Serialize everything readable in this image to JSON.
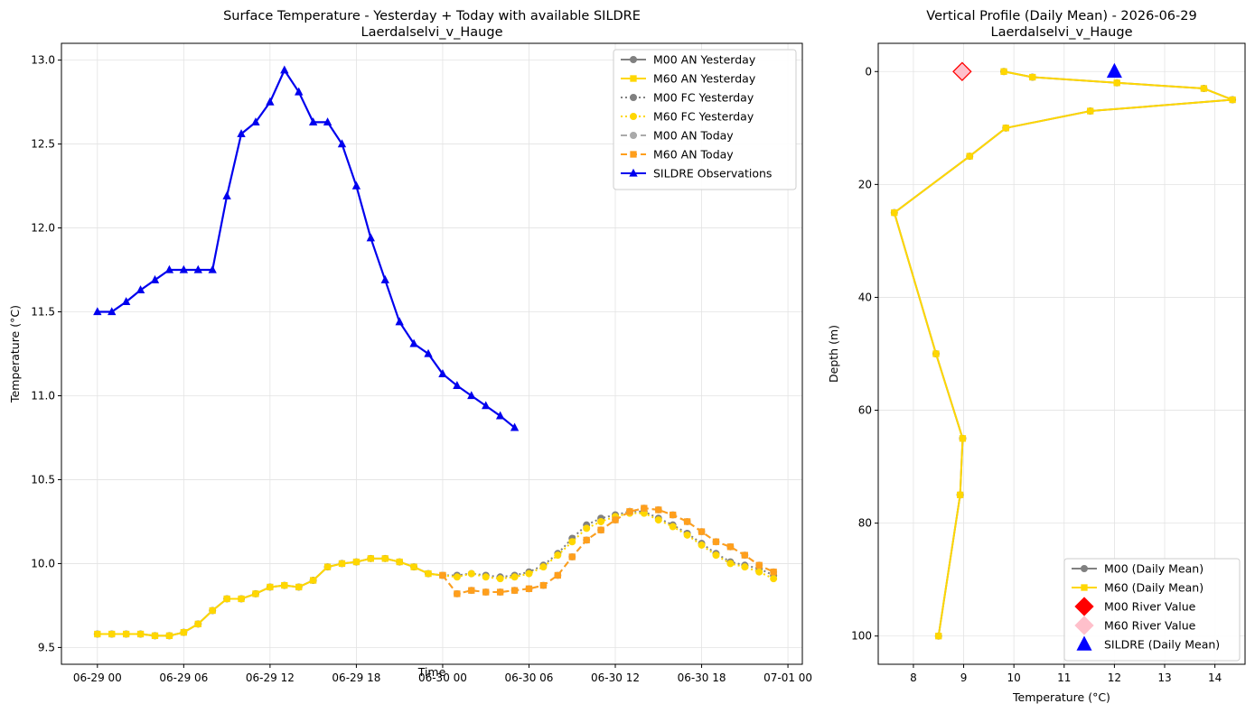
{
  "chart_data": [
    {
      "type": "line",
      "title": "Surface Temperature - Yesterday + Today with available SILDRE",
      "subtitle": "Laerdalselvi_v_Hauge",
      "xlabel": "Time",
      "ylabel": "Temperature (°C)",
      "x_unit": "hours since 06-29 00",
      "xlim": [
        -2.5,
        49
      ],
      "ylim": [
        9.4,
        13.1
      ],
      "xticks": [
        {
          "value": 0,
          "label": "06-29 00"
        },
        {
          "value": 6,
          "label": "06-29 06"
        },
        {
          "value": 12,
          "label": "06-29 12"
        },
        {
          "value": 18,
          "label": "06-29 18"
        },
        {
          "value": 24,
          "label": "06-30 00"
        },
        {
          "value": 30,
          "label": "06-30 06"
        },
        {
          "value": 36,
          "label": "06-30 12"
        },
        {
          "value": 42,
          "label": "06-30 18"
        },
        {
          "value": 48,
          "label": "07-01 00"
        }
      ],
      "yticks": [
        9.5,
        10.0,
        10.5,
        11.0,
        11.5,
        12.0,
        12.5,
        13.0
      ],
      "grid": true,
      "legend_position": "top-right",
      "series": [
        {
          "name": "M00 AN Yesterday",
          "color": "#808080",
          "marker": "circle",
          "dash": "solid",
          "width": 2,
          "x": [
            0,
            1,
            2,
            3,
            4,
            5,
            6,
            7,
            8,
            9,
            10,
            11,
            12,
            13,
            14,
            15,
            16,
            17,
            18,
            19,
            20,
            21,
            22,
            23,
            24
          ],
          "y": [
            9.58,
            9.58,
            9.58,
            9.58,
            9.57,
            9.57,
            9.59,
            9.64,
            9.72,
            9.79,
            9.79,
            9.82,
            9.86,
            9.87,
            9.86,
            9.9,
            9.98,
            10.0,
            10.01,
            10.03,
            10.03,
            10.01,
            9.98,
            9.94,
            9.93
          ]
        },
        {
          "name": "M60 AN Yesterday",
          "color": "#FFD700",
          "marker": "square",
          "dash": "solid",
          "width": 2,
          "x": [
            0,
            1,
            2,
            3,
            4,
            5,
            6,
            7,
            8,
            9,
            10,
            11,
            12,
            13,
            14,
            15,
            16,
            17,
            18,
            19,
            20,
            21,
            22,
            23,
            24
          ],
          "y": [
            9.58,
            9.58,
            9.58,
            9.58,
            9.57,
            9.57,
            9.59,
            9.64,
            9.72,
            9.79,
            9.79,
            9.82,
            9.86,
            9.87,
            9.86,
            9.9,
            9.98,
            10.0,
            10.01,
            10.03,
            10.03,
            10.01,
            9.98,
            9.94,
            9.93
          ]
        },
        {
          "name": "M00 FC Yesterday",
          "color": "#808080",
          "marker": "circle",
          "dash": "dotted",
          "width": 2,
          "x": [
            24,
            25,
            26,
            27,
            28,
            29,
            30,
            31,
            32,
            33,
            34,
            35,
            36,
            37,
            38,
            39,
            40,
            41,
            42,
            43,
            44,
            45,
            46,
            47
          ],
          "y": [
            9.93,
            9.93,
            9.94,
            9.93,
            9.92,
            9.93,
            9.95,
            9.99,
            10.06,
            10.15,
            10.23,
            10.27,
            10.29,
            10.31,
            10.31,
            10.27,
            10.23,
            10.18,
            10.12,
            10.06,
            10.01,
            9.99,
            9.97,
            9.93
          ]
        },
        {
          "name": "M60 FC Yesterday",
          "color": "#FFD700",
          "marker": "circle",
          "dash": "dotted",
          "width": 2,
          "x": [
            24,
            25,
            26,
            27,
            28,
            29,
            30,
            31,
            32,
            33,
            34,
            35,
            36,
            37,
            38,
            39,
            40,
            41,
            42,
            43,
            44,
            45,
            46,
            47
          ],
          "y": [
            9.93,
            9.92,
            9.94,
            9.92,
            9.91,
            9.92,
            9.94,
            9.98,
            10.05,
            10.13,
            10.21,
            10.25,
            10.28,
            10.3,
            10.3,
            10.26,
            10.22,
            10.17,
            10.11,
            10.05,
            10.0,
            9.98,
            9.95,
            9.91
          ]
        },
        {
          "name": "M00 AN Today",
          "color": "#AAAAAA",
          "marker": "circle",
          "dash": "dashed",
          "width": 2,
          "x": [
            24,
            25,
            26,
            27,
            28,
            29,
            30,
            31,
            32,
            33,
            34,
            35,
            36,
            37,
            38,
            39,
            40,
            41,
            42,
            43,
            44,
            45,
            46,
            47
          ],
          "y": [
            9.93,
            9.82,
            9.84,
            9.83,
            9.83,
            9.84,
            9.85,
            9.87,
            9.93,
            10.04,
            10.14,
            10.2,
            10.26,
            10.31,
            10.33,
            10.32,
            10.29,
            10.25,
            10.19,
            10.13,
            10.1,
            10.05,
            9.99,
            9.95
          ]
        },
        {
          "name": "M60 AN Today",
          "color": "#FF9F1C",
          "marker": "square",
          "dash": "dashed",
          "width": 2,
          "x": [
            24,
            25,
            26,
            27,
            28,
            29,
            30,
            31,
            32,
            33,
            34,
            35,
            36,
            37,
            38,
            39,
            40,
            41,
            42,
            43,
            44,
            45,
            46,
            47
          ],
          "y": [
            9.93,
            9.82,
            9.84,
            9.83,
            9.83,
            9.84,
            9.85,
            9.87,
            9.93,
            10.04,
            10.14,
            10.2,
            10.26,
            10.31,
            10.33,
            10.32,
            10.29,
            10.25,
            10.19,
            10.13,
            10.1,
            10.05,
            9.99,
            9.95
          ]
        },
        {
          "name": "SILDRE Observations",
          "color": "#0000EE",
          "marker": "triangle",
          "dash": "solid",
          "width": 2.2,
          "x": [
            0,
            1,
            2,
            3,
            4,
            5,
            6,
            7,
            8,
            9,
            10,
            11,
            12,
            13,
            14,
            15,
            16,
            17,
            18,
            19,
            20,
            21,
            22,
            23,
            24,
            25,
            26,
            27,
            28,
            29
          ],
          "y": [
            11.5,
            11.5,
            11.56,
            11.63,
            11.69,
            11.75,
            11.75,
            11.75,
            11.75,
            12.19,
            12.56,
            12.63,
            12.75,
            12.94,
            12.81,
            12.63,
            12.63,
            12.5,
            12.25,
            11.94,
            11.69,
            11.44,
            11.31,
            11.25,
            11.13,
            11.06,
            11.0,
            10.94,
            10.88,
            10.81
          ]
        }
      ]
    },
    {
      "type": "line",
      "title": "Vertical Profile (Daily Mean) - 2026-06-29",
      "subtitle": "Laerdalselvi_v_Hauge",
      "xlabel": "Temperature (°C)",
      "ylabel": "Depth (m)",
      "xlim": [
        7.3,
        14.6
      ],
      "ylim": [
        105,
        -5
      ],
      "y_inverted": true,
      "xticks": [
        8,
        9,
        10,
        11,
        12,
        13,
        14
      ],
      "yticks": [
        0,
        20,
        40,
        60,
        80,
        100
      ],
      "grid": true,
      "legend_position": "bottom-right",
      "series": [
        {
          "name": "M00 (Daily Mean)",
          "color": "#808080",
          "marker": "circle",
          "dash": "solid",
          "width": 2,
          "x": [
            9.8,
            10.37,
            12.05,
            13.78,
            14.35,
            11.52,
            9.84,
            9.12,
            7.62,
            8.45,
            8.98,
            8.93,
            8.5
          ],
          "y": [
            0,
            1,
            2,
            3,
            5,
            7,
            10,
            15,
            25,
            50,
            65,
            75,
            100
          ]
        },
        {
          "name": "M60 (Daily Mean)",
          "color": "#FFD700",
          "marker": "square",
          "dash": "solid",
          "width": 2,
          "x": [
            9.8,
            10.37,
            12.05,
            13.78,
            14.35,
            11.52,
            9.84,
            9.12,
            7.62,
            8.45,
            8.98,
            8.93,
            8.5
          ],
          "y": [
            0,
            1,
            2,
            3,
            5,
            7,
            10,
            15,
            25,
            50,
            65,
            75,
            100
          ]
        },
        {
          "name": "M00 River Value",
          "color": "#FF0000",
          "marker": "diamond",
          "dash": "none",
          "width": 0,
          "x": [
            8.97
          ],
          "y": [
            0
          ]
        },
        {
          "name": "M60 River Value",
          "color": "#FFC0CB",
          "marker": "diamond",
          "dash": "none",
          "width": 0,
          "x": [
            8.97
          ],
          "y": [
            0
          ]
        },
        {
          "name": "SILDRE (Daily Mean)",
          "color": "#0000FF",
          "marker": "triangle",
          "dash": "none",
          "width": 0,
          "x": [
            12.0
          ],
          "y": [
            0
          ]
        }
      ]
    }
  ]
}
